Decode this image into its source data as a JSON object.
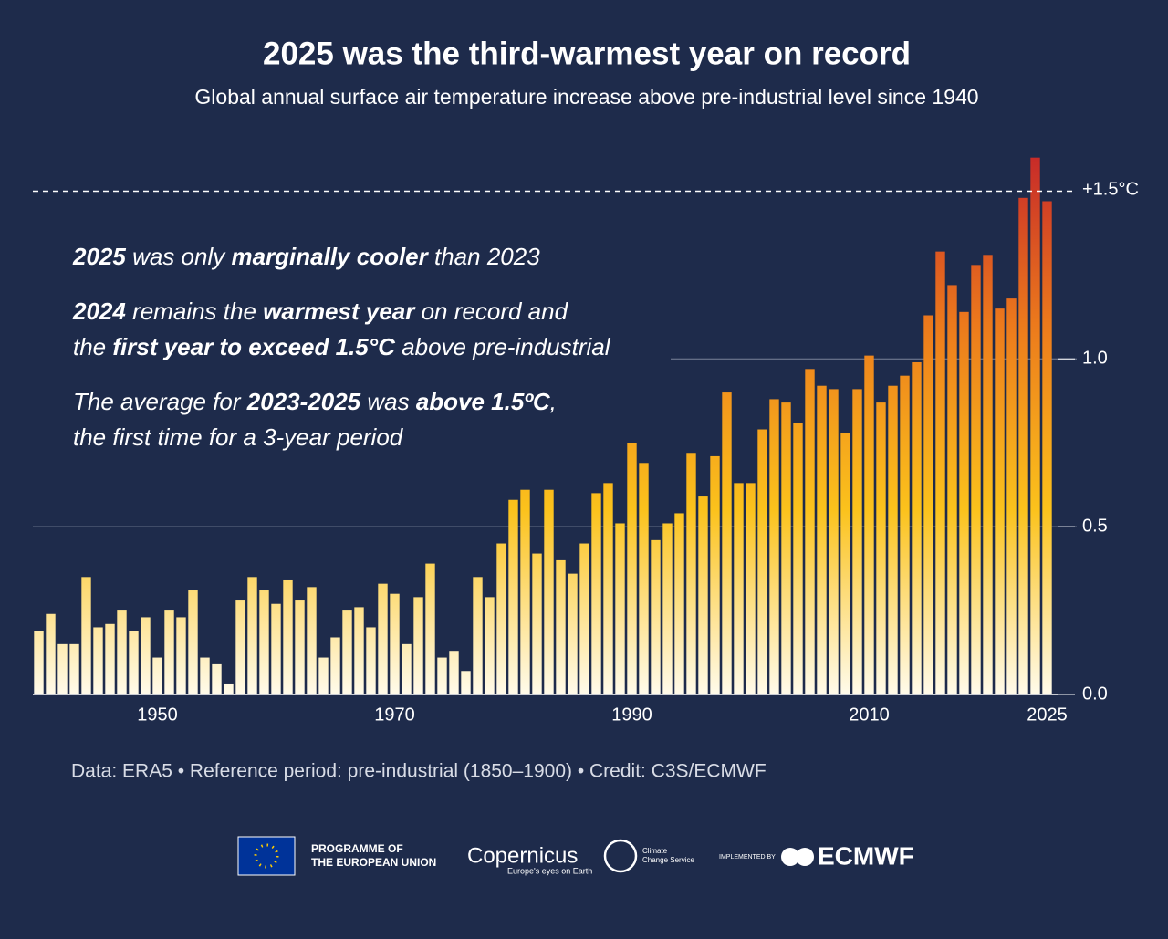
{
  "chart_data": {
    "type": "bar",
    "title": "2025 was the third-warmest year on record",
    "subtitle": "Global annual surface air temperature increase above pre-industrial level since 1940",
    "x": [
      1940,
      1941,
      1942,
      1943,
      1944,
      1945,
      1946,
      1947,
      1948,
      1949,
      1950,
      1951,
      1952,
      1953,
      1954,
      1955,
      1956,
      1957,
      1958,
      1959,
      1960,
      1961,
      1962,
      1963,
      1964,
      1965,
      1966,
      1967,
      1968,
      1969,
      1970,
      1971,
      1972,
      1973,
      1974,
      1975,
      1976,
      1977,
      1978,
      1979,
      1980,
      1981,
      1982,
      1983,
      1984,
      1985,
      1986,
      1987,
      1988,
      1989,
      1990,
      1991,
      1992,
      1993,
      1994,
      1995,
      1996,
      1997,
      1998,
      1999,
      2000,
      2001,
      2002,
      2003,
      2004,
      2005,
      2006,
      2007,
      2008,
      2009,
      2010,
      2011,
      2012,
      2013,
      2014,
      2015,
      2016,
      2017,
      2018,
      2019,
      2020,
      2021,
      2022,
      2023,
      2024,
      2025
    ],
    "values": [
      0.19,
      0.24,
      0.15,
      0.15,
      0.35,
      0.2,
      0.21,
      0.25,
      0.19,
      0.23,
      0.11,
      0.25,
      0.23,
      0.31,
      0.11,
      0.09,
      0.03,
      0.28,
      0.35,
      0.31,
      0.27,
      0.34,
      0.28,
      0.32,
      0.11,
      0.17,
      0.25,
      0.26,
      0.2,
      0.33,
      0.3,
      0.15,
      0.29,
      0.39,
      0.11,
      0.13,
      0.07,
      0.35,
      0.29,
      0.45,
      0.58,
      0.61,
      0.42,
      0.61,
      0.4,
      0.36,
      0.45,
      0.6,
      0.63,
      0.51,
      0.75,
      0.69,
      0.46,
      0.51,
      0.54,
      0.72,
      0.59,
      0.71,
      0.9,
      0.63,
      0.63,
      0.79,
      0.88,
      0.87,
      0.81,
      0.97,
      0.92,
      0.91,
      0.78,
      0.91,
      1.01,
      0.87,
      0.92,
      0.95,
      0.99,
      1.13,
      1.32,
      1.22,
      1.14,
      1.28,
      1.31,
      1.15,
      1.18,
      1.48,
      1.6,
      1.47
    ],
    "gradient": [
      "#fffbeb",
      "#fbc21c",
      "#ec7a1c",
      "#c4232a"
    ],
    "xlim": [
      1939.5,
      2025.5
    ],
    "xticks": [
      1950,
      1970,
      1990,
      2010,
      2025
    ],
    "ylim": [
      0,
      1.65
    ],
    "yticks": [
      {
        "value": 0,
        "label": "0.0"
      },
      {
        "value": 0.5,
        "label": "0.5"
      },
      {
        "value": 1.0,
        "label": "1.0"
      }
    ],
    "grid": true,
    "reference_line": {
      "value": 1.5,
      "label": "+1.5°C"
    },
    "annotations": [
      [
        [
          {
            "text": "2025",
            "bold": true
          },
          {
            "text": " was only ",
            "bold": false
          },
          {
            "text": "marginally cooler",
            "bold": true
          },
          {
            "text": " than 2023",
            "bold": false
          }
        ]
      ],
      [
        [
          {
            "text": "2024",
            "bold": true
          },
          {
            "text": " remains the ",
            "bold": false
          },
          {
            "text": "warmest year",
            "bold": true
          },
          {
            "text": " on record and",
            "bold": false
          }
        ],
        [
          {
            "text": "the ",
            "bold": false
          },
          {
            "text": "first year to exceed 1.5°C",
            "bold": true
          },
          {
            "text": " above pre-industrial",
            "bold": false
          }
        ]
      ],
      [
        [
          {
            "text": "The average for ",
            "bold": false
          },
          {
            "text": "2023-2025",
            "bold": true
          },
          {
            "text": " was ",
            "bold": false
          },
          {
            "text": "above 1.5ºC",
            "bold": true
          },
          {
            "text": ",",
            "bold": false
          }
        ],
        [
          {
            "text": "the first time for a 3-year period",
            "bold": false
          }
        ]
      ]
    ],
    "source": "Data: ERA5 • Reference period: pre-industrial (1850–1900) • Credit: C3S/ECMWF"
  },
  "logos": {
    "eu": [
      "PROGRAMME OF",
      "THE EUROPEAN UNION"
    ],
    "copernicus": "Copernicus",
    "copernicus_tagline": "Europe's eyes on Earth",
    "climate": [
      "Climate",
      "Change Service"
    ],
    "implemented_by": "IMPLEMENTED BY",
    "ecmwf": "ECMWF"
  }
}
